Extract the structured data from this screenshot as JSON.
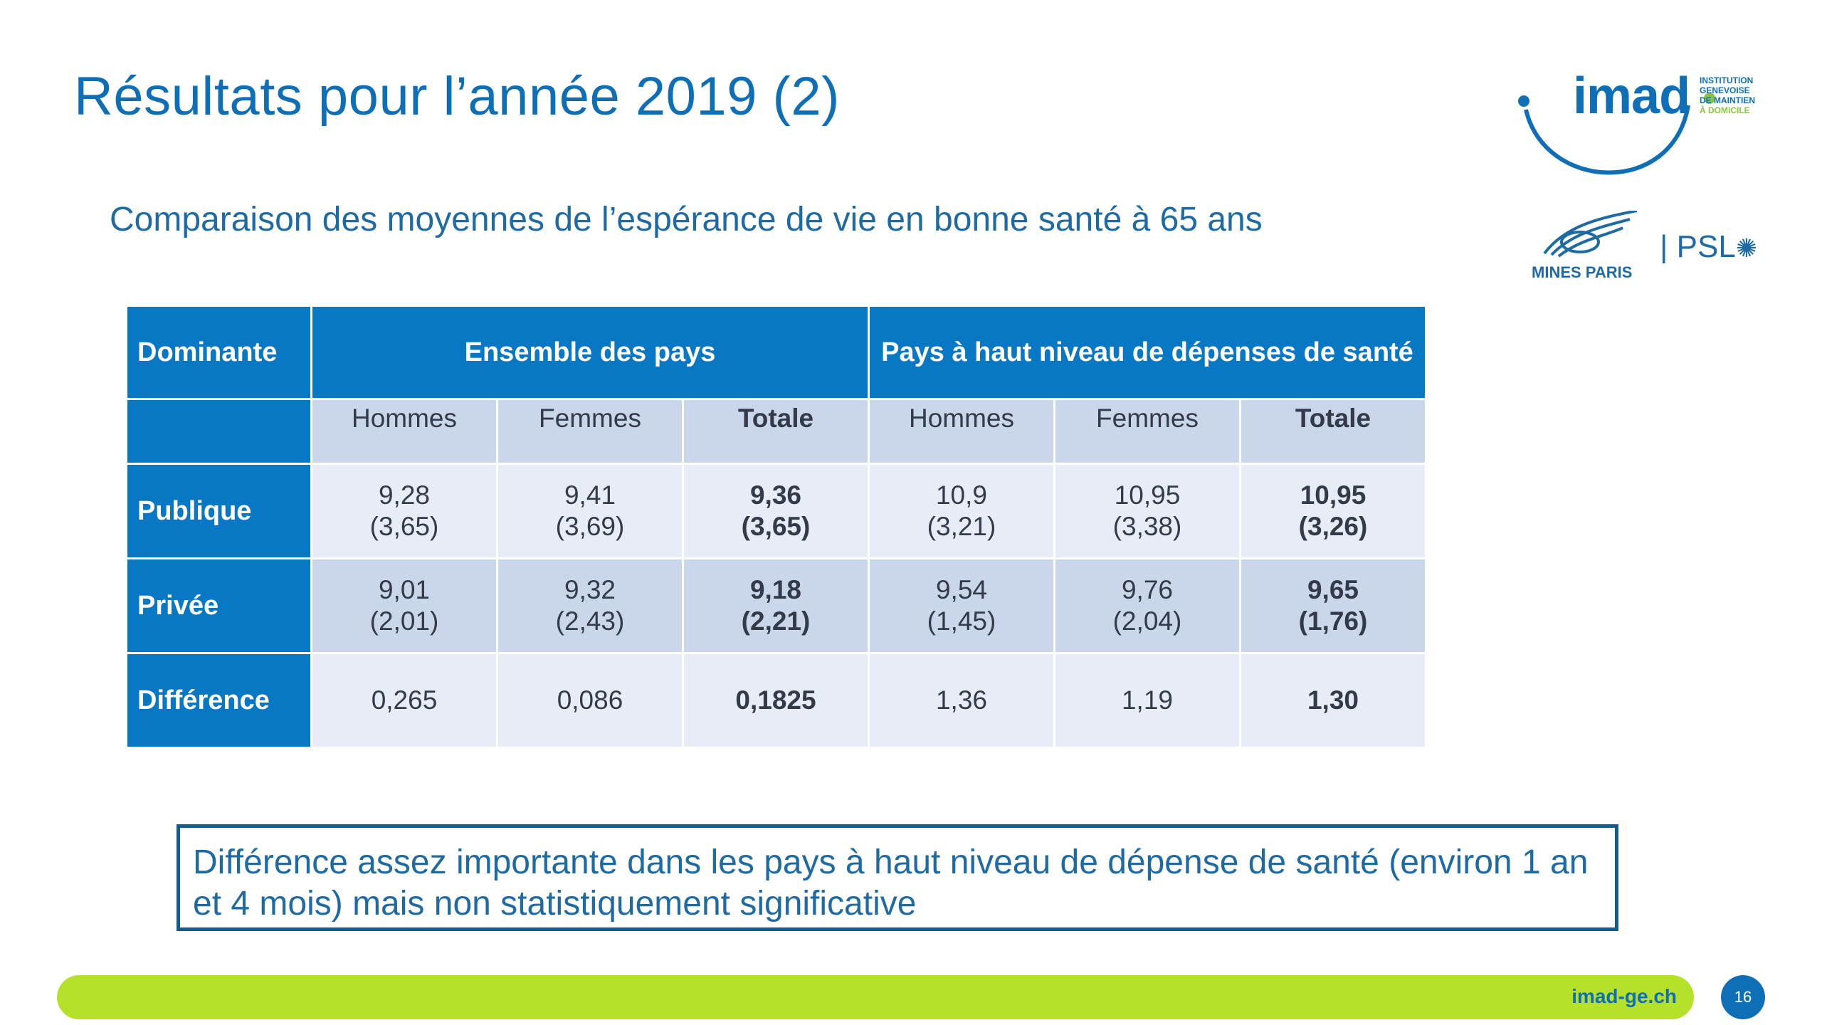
{
  "slide": {
    "title": "Résultats pour l’année 2019 (2)",
    "subtitle": "Comparaison des moyennes de l’espérance de vie en bonne santé à 65 ans"
  },
  "logos": {
    "imad_word": "imad",
    "imad_side": [
      "INSTITUTION",
      "GENEVOISE",
      "DE MAINTIEN",
      "À DOMICILE"
    ],
    "mines": "MINES PARIS",
    "psl": "| PSL"
  },
  "table": {
    "header": {
      "dominante": "Dominante",
      "group1": "Ensemble des pays",
      "group2": "Pays à haut niveau de dépenses de santé"
    },
    "subheaders": [
      "Hommes",
      "Femmes",
      "Totale",
      "Hommes",
      "Femmes",
      "Totale"
    ],
    "rows": [
      {
        "label": "Publique",
        "cells": [
          {
            "v": "9,28",
            "sd": "(3,65)"
          },
          {
            "v": "9,41",
            "sd": "(3,69)"
          },
          {
            "v": "9,36",
            "sd": "(3,65)"
          },
          {
            "v": "10,9",
            "sd": "(3,21)"
          },
          {
            "v": "10,95",
            "sd": "(3,38)"
          },
          {
            "v": "10,95",
            "sd": "(3,26)"
          }
        ]
      },
      {
        "label": "Privée",
        "cells": [
          {
            "v": "9,01",
            "sd": "(2,01)"
          },
          {
            "v": "9,32",
            "sd": "(2,43)"
          },
          {
            "v": "9,18",
            "sd": "(2,21)"
          },
          {
            "v": "9,54",
            "sd": "(1,45)"
          },
          {
            "v": "9,76",
            "sd": "(2,04)"
          },
          {
            "v": "9,65",
            "sd": "(1,76)"
          }
        ]
      },
      {
        "label": "Différence",
        "cells": [
          "0,265",
          "0,086",
          "0,1825",
          "1,36",
          "1,19",
          "1,30"
        ]
      }
    ]
  },
  "callout": "Différence assez importante dans les pays à haut niveau de dépense de santé (environ 1 an et 4 mois) mais non statistiquement significative",
  "footer": {
    "url": "imad-ge.ch",
    "page": "16"
  },
  "colors": {
    "title": "#0f6fb6",
    "table_header": "#0878c5",
    "cell_light": "#e8ecf6",
    "cell_mid": "#cad7ea",
    "footer_bar": "#b5e12a"
  }
}
